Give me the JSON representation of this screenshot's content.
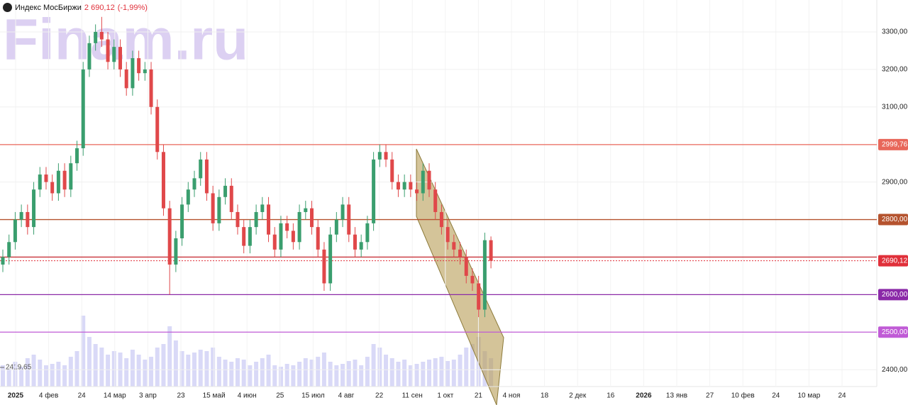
{
  "chart_data": {
    "type": "candlestick",
    "title": "Индекс МосБиржи",
    "price": "2 690,12",
    "change": "(-1,99%)",
    "watermark": "Finam.ru",
    "up_color": "#3a9e6e",
    "down_color": "#e0484a",
    "volume_color": "#d9d9f7",
    "open": [
      2680,
      2700,
      2740,
      2800,
      2820,
      2780,
      2880,
      2920,
      2900,
      2870,
      2930,
      2880,
      2950,
      2990,
      3200,
      3270,
      3300,
      3280,
      3220,
      3260,
      3200,
      3150,
      3230,
      3190,
      3200,
      3100,
      2980,
      2830,
      2680,
      2750,
      2840,
      2880,
      2910,
      2960,
      2870,
      2790,
      2860,
      2890,
      2820,
      2780,
      2730,
      2780,
      2820,
      2840,
      2760,
      2720,
      2790,
      2770,
      2740,
      2820,
      2830,
      2780,
      2720,
      2630,
      2760,
      2800,
      2840,
      2760,
      2720,
      2740,
      2790,
      2960,
      2980,
      2960,
      2900,
      2880,
      2900,
      2880,
      2870,
      2930,
      2880,
      2820,
      2780,
      2740,
      2720,
      2700,
      2650,
      2630,
      2560,
      2745
    ],
    "high": [
      2720,
      2760,
      2820,
      2840,
      2840,
      2900,
      2940,
      2940,
      2920,
      2950,
      2950,
      2970,
      3010,
      3220,
      3290,
      3320,
      3340,
      3300,
      3280,
      3280,
      3220,
      3250,
      3250,
      3220,
      3220,
      3120,
      3000,
      2850,
      2770,
      2860,
      2900,
      2930,
      2980,
      2980,
      2890,
      2880,
      2910,
      2910,
      2840,
      2800,
      2800,
      2840,
      2860,
      2860,
      2780,
      2810,
      2810,
      2790,
      2840,
      2850,
      2850,
      2800,
      2740,
      2780,
      2820,
      2860,
      2860,
      2780,
      2760,
      2810,
      2980,
      3000,
      3000,
      2980,
      2920,
      2920,
      2920,
      2900,
      2950,
      2950,
      2900,
      2840,
      2800,
      2760,
      2740,
      2720,
      2670,
      2650,
      2765,
      2755
    ],
    "low": [
      2660,
      2680,
      2720,
      2780,
      2760,
      2760,
      2860,
      2880,
      2850,
      2850,
      2860,
      2860,
      2930,
      2970,
      3180,
      3250,
      3260,
      3200,
      3200,
      3180,
      3130,
      3130,
      3170,
      3170,
      3080,
      2960,
      2810,
      2600,
      2660,
      2730,
      2820,
      2860,
      2890,
      2850,
      2770,
      2770,
      2840,
      2800,
      2760,
      2710,
      2710,
      2760,
      2800,
      2740,
      2700,
      2700,
      2750,
      2720,
      2720,
      2800,
      2760,
      2700,
      2610,
      2610,
      2740,
      2780,
      2740,
      2700,
      2700,
      2720,
      2770,
      2940,
      2940,
      2880,
      2860,
      2860,
      2860,
      2850,
      2850,
      2860,
      2800,
      2760,
      2720,
      2700,
      2680,
      2630,
      2610,
      2540,
      2540,
      2670
    ],
    "close": [
      2700,
      2740,
      2800,
      2820,
      2780,
      2880,
      2920,
      2900,
      2870,
      2930,
      2880,
      2950,
      2990,
      3200,
      3270,
      3300,
      3280,
      3220,
      3260,
      3200,
      3150,
      3230,
      3190,
      3200,
      3100,
      2980,
      2830,
      2680,
      2750,
      2840,
      2880,
      2910,
      2960,
      2870,
      2790,
      2860,
      2890,
      2820,
      2780,
      2730,
      2780,
      2820,
      2840,
      2760,
      2720,
      2790,
      2770,
      2740,
      2820,
      2830,
      2780,
      2720,
      2630,
      2760,
      2800,
      2840,
      2760,
      2720,
      2740,
      2790,
      2960,
      2980,
      2960,
      2900,
      2880,
      2900,
      2880,
      2870,
      2930,
      2880,
      2820,
      2780,
      2740,
      2720,
      2700,
      2650,
      2630,
      2560,
      2745,
      2690.12
    ],
    "volume": [
      30,
      25,
      35,
      28,
      40,
      45,
      38,
      30,
      32,
      35,
      30,
      42,
      50,
      100,
      70,
      60,
      55,
      45,
      50,
      48,
      40,
      52,
      45,
      38,
      42,
      55,
      60,
      85,
      65,
      50,
      45,
      48,
      52,
      50,
      55,
      42,
      38,
      35,
      40,
      38,
      30,
      35,
      40,
      45,
      30,
      28,
      32,
      30,
      35,
      40,
      38,
      42,
      48,
      35,
      30,
      32,
      36,
      38,
      30,
      42,
      60,
      55,
      45,
      40,
      35,
      38,
      30,
      32,
      35,
      38,
      40,
      42,
      36,
      38,
      45,
      55,
      60,
      70,
      50,
      40
    ],
    "volume_label": "2419,65",
    "ylim": [
      2355,
      3385
    ],
    "yticks": [
      {
        "value": 3300,
        "label": "3300,00"
      },
      {
        "value": 3200,
        "label": "3200,00"
      },
      {
        "value": 3100,
        "label": "3100,00"
      },
      {
        "value": 2900,
        "label": "2900,00"
      },
      {
        "value": 2400,
        "label": "2400,00"
      }
    ],
    "levels": [
      {
        "value": 2999.76,
        "label": "2999,76",
        "color": "#e8675a"
      },
      {
        "value": 2800,
        "label": "2800,00",
        "color": "#b5532e"
      },
      {
        "value": 2700,
        "color": "#c8323a"
      },
      {
        "value": 2690.12,
        "label": "2690,12",
        "color": "#e0303a",
        "dashed": true
      },
      {
        "value": 2600,
        "label": "2600,00",
        "color": "#8b2aa8"
      },
      {
        "value": 2500,
        "label": "2500,00",
        "color": "#c05bd6"
      }
    ],
    "xlabels": [
      "2025",
      "4 фев",
      "24",
      "14 мар",
      "3 апр",
      "23",
      "15 май",
      "4 июн",
      "25",
      "15 июл",
      "4 авг",
      "22",
      "11 сен",
      "1 окт",
      "21",
      "4 ноя",
      "18",
      "2 дек",
      "16",
      "2026",
      "13 янв",
      "27",
      "10 фев",
      "24",
      "10 мар",
      "24"
    ],
    "grid": true
  }
}
